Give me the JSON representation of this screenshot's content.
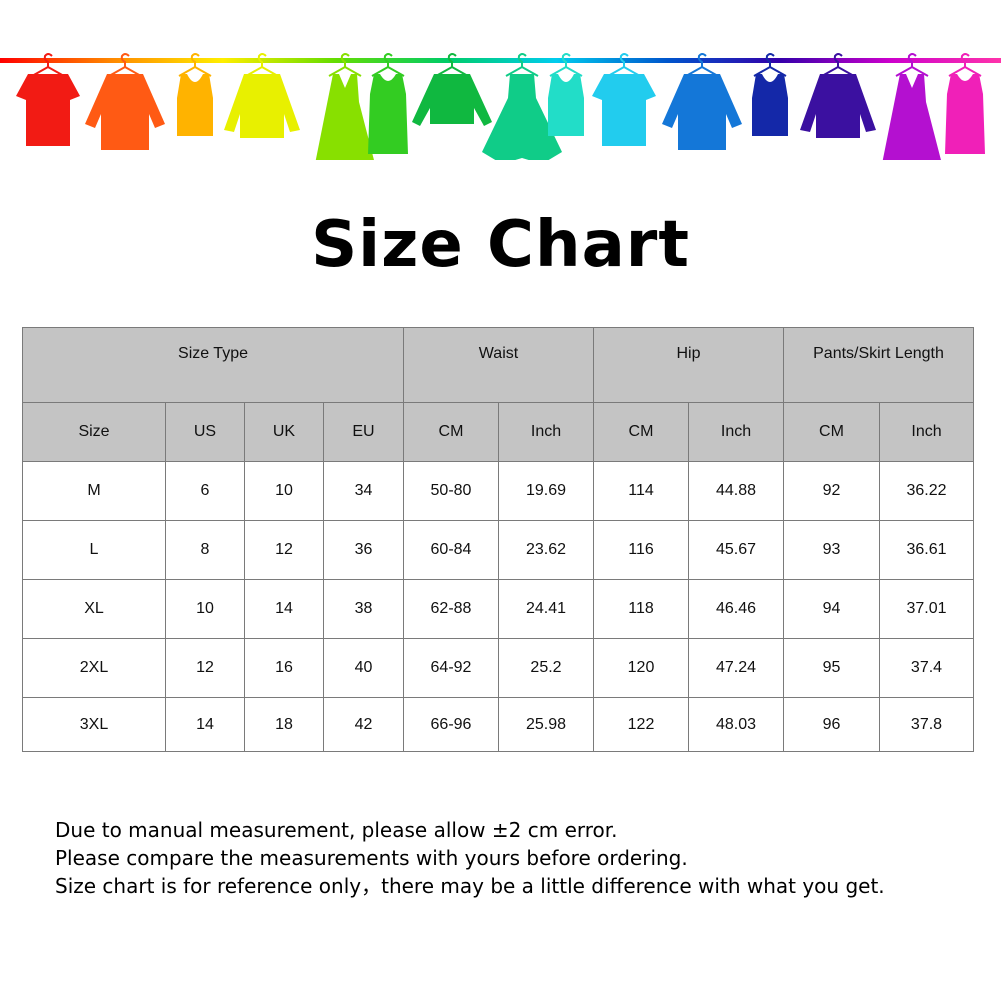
{
  "banner": {
    "rail_gradient": [
      "#ff0000",
      "#ff8800",
      "#ffee00",
      "#66dd00",
      "#00cc66",
      "#00ccee",
      "#0055cc",
      "#3300aa",
      "#cc00cc",
      "#ff33aa"
    ],
    "garments": [
      {
        "icon": "tshirt-icon",
        "color": "#f21b14"
      },
      {
        "icon": "shirt-icon",
        "color": "#ff5a14"
      },
      {
        "icon": "tank-top-icon",
        "color": "#ffb300"
      },
      {
        "icon": "cardigan-icon",
        "color": "#e8f000"
      },
      {
        "icon": "dress-icon",
        "color": "#88e000"
      },
      {
        "icon": "tank-dress-icon",
        "color": "#33cc22"
      },
      {
        "icon": "sweater-icon",
        "color": "#10b840"
      },
      {
        "icon": "ball-dress-icon",
        "color": "#10cc88"
      },
      {
        "icon": "tank-top-icon",
        "color": "#22ddc8"
      },
      {
        "icon": "tshirt-icon",
        "color": "#22ccee"
      },
      {
        "icon": "shirt-icon",
        "color": "#1477d8"
      },
      {
        "icon": "tank-top-icon",
        "color": "#1428a8"
      },
      {
        "icon": "cardigan-icon",
        "color": "#3b10a0"
      },
      {
        "icon": "dress-icon",
        "color": "#b410d0"
      },
      {
        "icon": "tank-dress-icon",
        "color": "#f020b8"
      }
    ]
  },
  "title": "Size Chart",
  "table": {
    "group_headers": [
      "Size Type",
      "Waist",
      "Hip",
      "Pants/Skirt Length"
    ],
    "sub_headers": [
      "Size",
      "US",
      "UK",
      "EU",
      "CM",
      "Inch",
      "CM",
      "Inch",
      "CM",
      "Inch"
    ],
    "rows": [
      [
        "M",
        "6",
        "10",
        "34",
        "50-80",
        "19.69",
        "114",
        "44.88",
        "92",
        "36.22"
      ],
      [
        "L",
        "8",
        "12",
        "36",
        "60-84",
        "23.62",
        "116",
        "45.67",
        "93",
        "36.61"
      ],
      [
        "XL",
        "10",
        "14",
        "38",
        "62-88",
        "24.41",
        "118",
        "46.46",
        "94",
        "37.01"
      ],
      [
        "2XL",
        "12",
        "16",
        "40",
        "64-92",
        "25.2",
        "120",
        "47.24",
        "95",
        "37.4"
      ],
      [
        "3XL",
        "14",
        "18",
        "42",
        "66-96",
        "25.98",
        "122",
        "48.03",
        "96",
        "37.8"
      ]
    ],
    "header_bg": "#c4c4c4"
  },
  "notes": [
    "Due to manual measurement, please allow ±2 cm error.",
    "Please compare the measurements with yours before ordering.",
    "Size chart is for reference only，there may be a little difference with what you get."
  ]
}
